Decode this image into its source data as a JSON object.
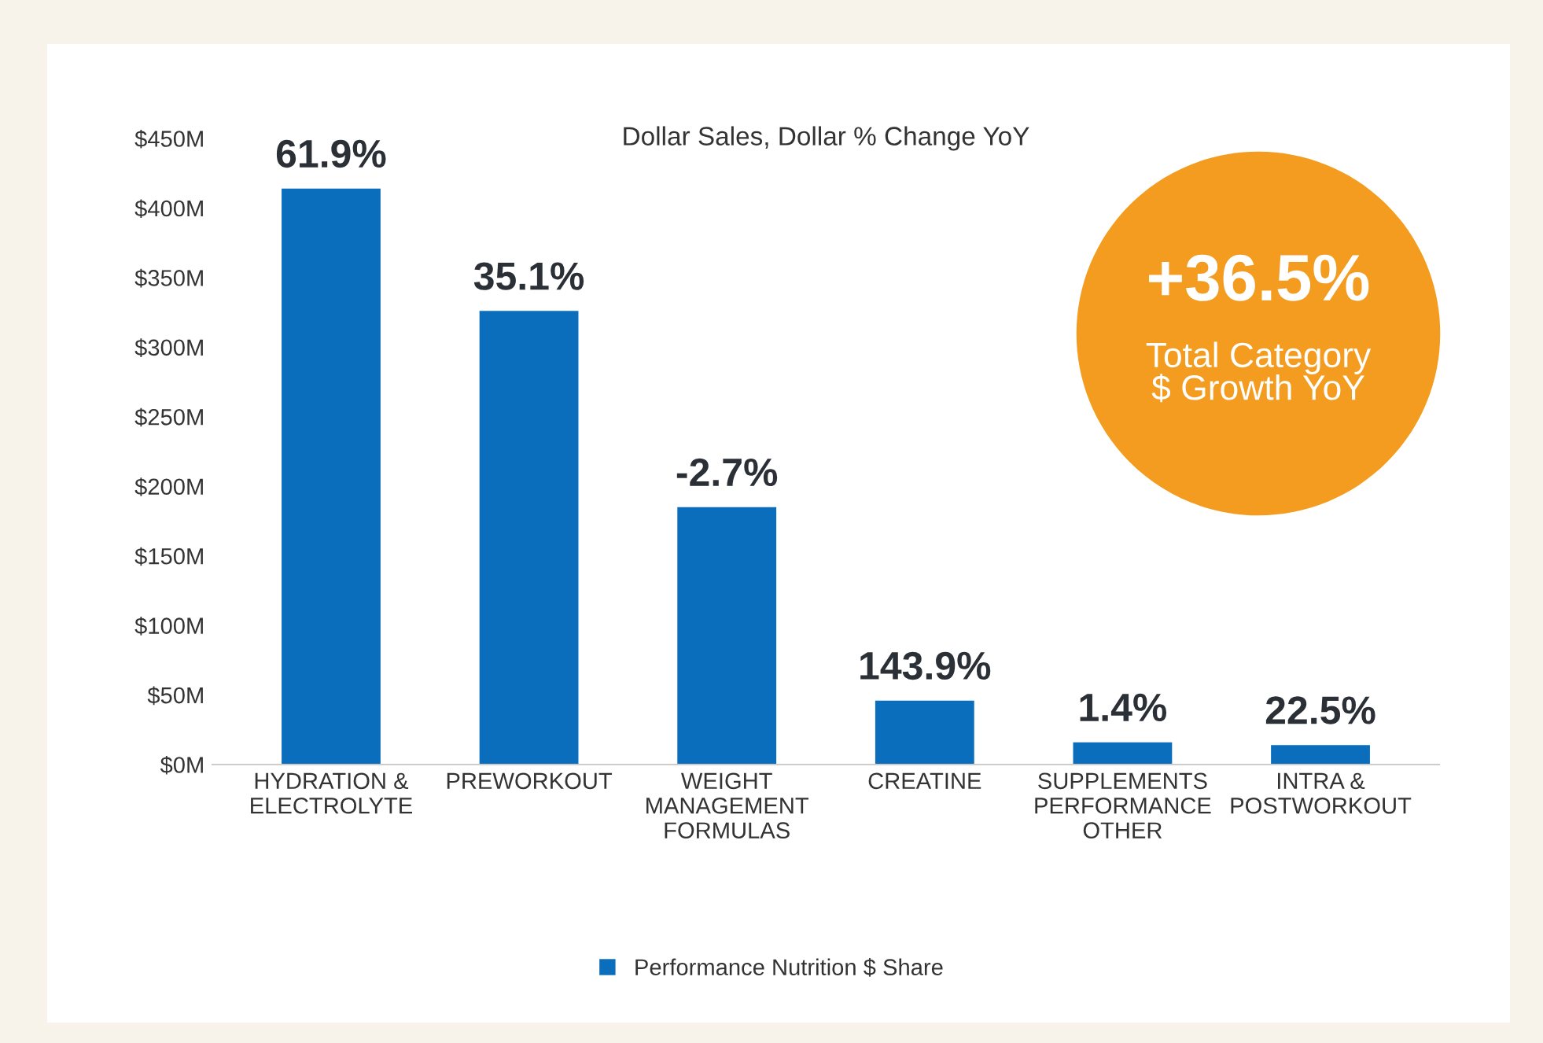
{
  "chart_data": {
    "type": "bar",
    "title": "Dollar Sales, Dollar % Change YoY",
    "categories": [
      "HYDRATION &\nELECTROLYTE",
      "PREWORKOUT",
      "WEIGHT\nMANAGEMENT\nFORMULAS",
      "CREATINE",
      "SUPPLEMENTS\nPERFORMANCE\nOTHER",
      "INTRA &\nPOSTWORKOUT"
    ],
    "series": [
      {
        "name": "Performance Nutrition $ Share",
        "color": "#0a6ebd",
        "values": [
          414,
          326,
          185,
          46,
          16,
          14
        ]
      }
    ],
    "ylim": [
      0,
      450
    ],
    "yticks": [
      {
        "value": 0,
        "label": "$0M"
      },
      {
        "value": 50,
        "label": "$50M"
      },
      {
        "value": 100,
        "label": "$100M"
      },
      {
        "value": 150,
        "label": "$150M"
      },
      {
        "value": 200,
        "label": "$200M"
      },
      {
        "value": 250,
        "label": "$250M"
      },
      {
        "value": 300,
        "label": "$300M"
      },
      {
        "value": 350,
        "label": "$350M"
      },
      {
        "value": 400,
        "label": "$400M"
      },
      {
        "value": 450,
        "label": "$450M"
      }
    ],
    "grid": false,
    "legend": "bottom",
    "annotations": [
      {
        "text": "61.9%",
        "x": "HYDRATION &\nELECTROLYTE",
        "y": 414
      },
      {
        "text": "35.1%",
        "x": "PREWORKOUT",
        "y": 326
      },
      {
        "text": "-2.7%",
        "x": "WEIGHT\nMANAGEMENT\nFORMULAS",
        "y": 185
      },
      {
        "text": "143.9%",
        "x": "CREATINE",
        "y": 46
      },
      {
        "text": "1.4%",
        "x": "SUPPLEMENTS\nPERFORMANCE\nOTHER",
        "y": 16
      },
      {
        "text": "22.5%",
        "x": "INTRA &\nPOSTWORKOUT",
        "y": 14
      },
      "+36.5%",
      "Total Category\n$ Growth YoY"
    ]
  }
}
